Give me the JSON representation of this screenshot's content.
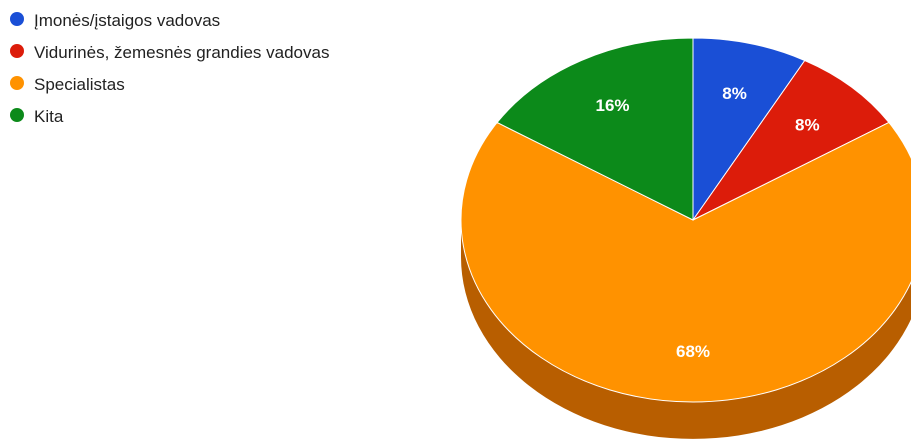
{
  "chart_data": {
    "type": "pie",
    "style": "3d",
    "legend_position": "top-left",
    "slices": [
      {
        "label": "Įmonės/įstaigos vadovas",
        "value": 8,
        "display": "8%",
        "color": "#1a4fd6"
      },
      {
        "label": "Vidurinės, žemesnės grandies vadovas",
        "value": 8,
        "display": "8%",
        "color": "#dc1c0a"
      },
      {
        "label": "Specialistas",
        "value": 68,
        "display": "68%",
        "color": "#ff9200",
        "side_color": "#b85e00"
      },
      {
        "label": "Kita",
        "value": 16,
        "display": "16%",
        "color": "#0c8a1a"
      }
    ]
  }
}
